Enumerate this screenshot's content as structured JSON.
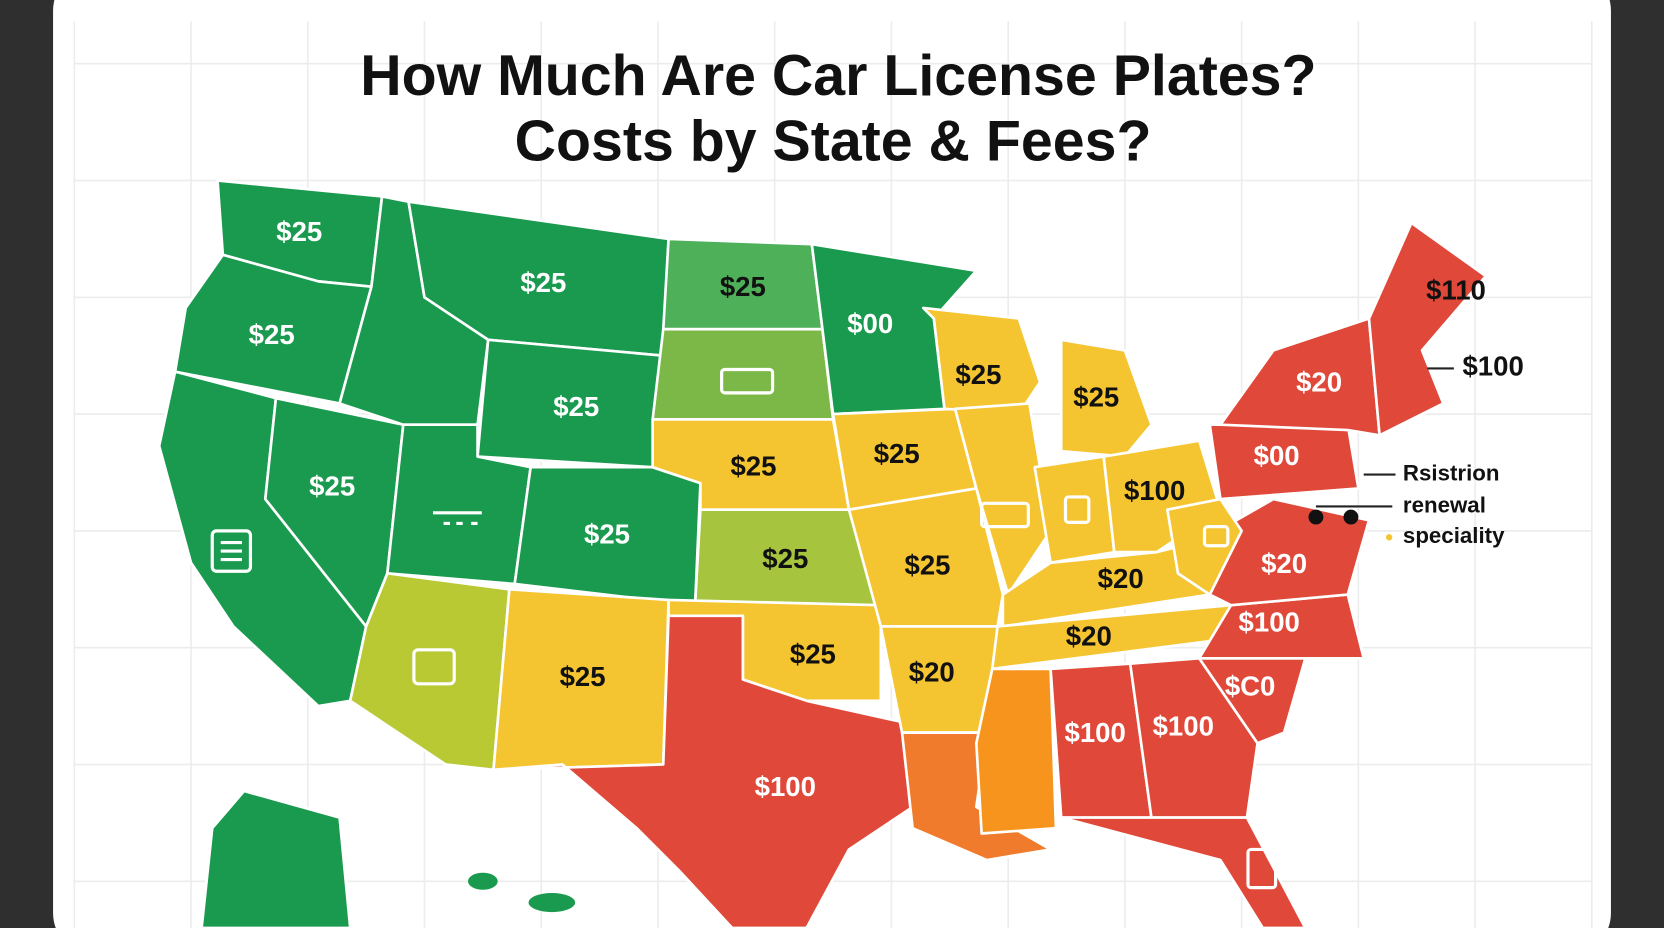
{
  "title_lines": [
    "How Much Are Car License Plates?",
    "Costs by State & Fees?"
  ],
  "map": {
    "labels": [
      "$25",
      "$25",
      "$25",
      "$00",
      "$110",
      "$25",
      "$25",
      "$25",
      "$25",
      "$20",
      "$100",
      "$25",
      "$25",
      "$00",
      "$100",
      "$25",
      "$25",
      "$25",
      "$25",
      "$20",
      "$20",
      "$100",
      "$20",
      "$25",
      "$20",
      "$25",
      "$C0",
      "$100",
      "$100",
      "$100"
    ]
  },
  "legend": [
    "Rsistrion",
    "renewal",
    "speciality"
  ]
}
